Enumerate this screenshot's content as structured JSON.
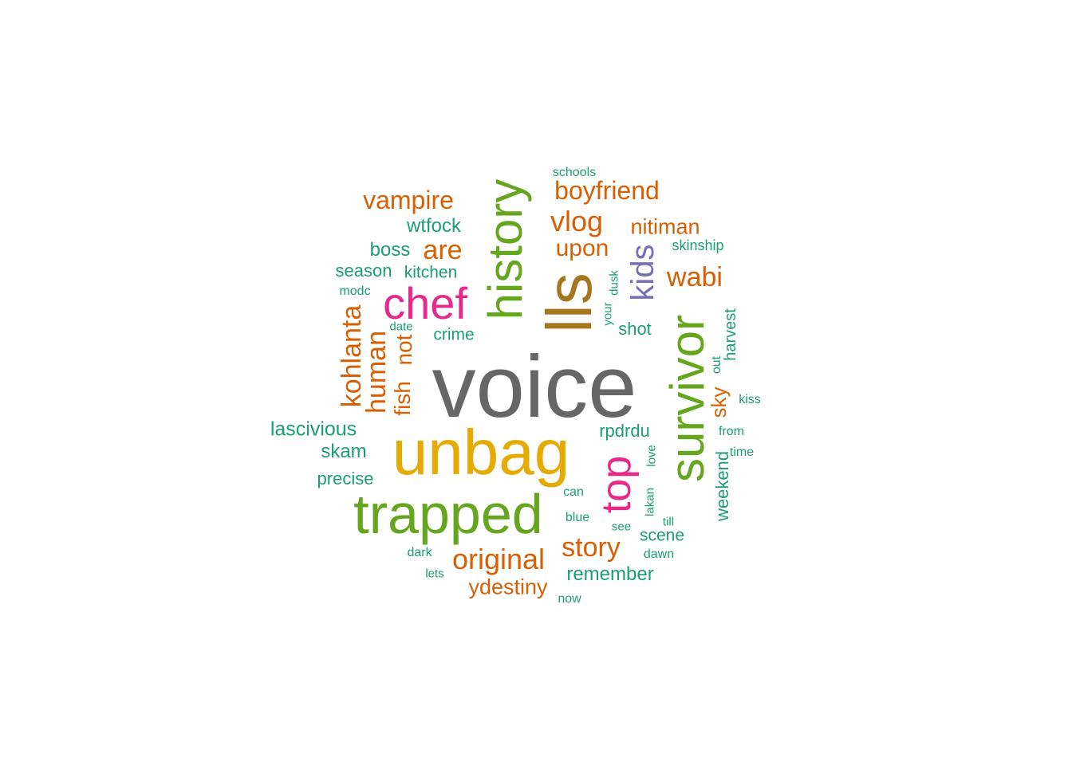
{
  "colors": {
    "teal": "#1b9e77",
    "orange": "#d95f02",
    "purple": "#7570b3",
    "magenta": "#e7298a",
    "green": "#66a61e",
    "gold": "#e6ab02",
    "brown": "#a6761d",
    "gray": "#666666"
  },
  "words": [
    {
      "text": "voice",
      "color": "gray",
      "rotated": false
    },
    {
      "text": "unbag",
      "color": "gold",
      "rotated": false
    },
    {
      "text": "trapped",
      "color": "green",
      "rotated": false
    },
    {
      "text": "lls",
      "color": "brown",
      "rotated": true
    },
    {
      "text": "survivor",
      "color": "green",
      "rotated": true
    },
    {
      "text": "history",
      "color": "green",
      "rotated": true
    },
    {
      "text": "chef",
      "color": "magenta",
      "rotated": false
    },
    {
      "text": "top",
      "color": "magenta",
      "rotated": true
    },
    {
      "text": "kids",
      "color": "purple",
      "rotated": true
    },
    {
      "text": "boyfriend",
      "color": "orange",
      "rotated": false
    },
    {
      "text": "vampire",
      "color": "orange",
      "rotated": false
    },
    {
      "text": "vlog",
      "color": "orange",
      "rotated": false
    },
    {
      "text": "nitiman",
      "color": "orange",
      "rotated": false
    },
    {
      "text": "are",
      "color": "orange",
      "rotated": false
    },
    {
      "text": "upon",
      "color": "orange",
      "rotated": false
    },
    {
      "text": "wabi",
      "color": "orange",
      "rotated": false
    },
    {
      "text": "kohlanta",
      "color": "orange",
      "rotated": true
    },
    {
      "text": "human",
      "color": "orange",
      "rotated": true
    },
    {
      "text": "not",
      "color": "orange",
      "rotated": true
    },
    {
      "text": "fish",
      "color": "orange",
      "rotated": true
    },
    {
      "text": "sky",
      "color": "orange",
      "rotated": true
    },
    {
      "text": "original",
      "color": "orange",
      "rotated": false
    },
    {
      "text": "story",
      "color": "orange",
      "rotated": false
    },
    {
      "text": "ydestiny",
      "color": "orange",
      "rotated": false
    },
    {
      "text": "wtfock",
      "color": "teal",
      "rotated": false
    },
    {
      "text": "boss",
      "color": "teal",
      "rotated": false
    },
    {
      "text": "season",
      "color": "teal",
      "rotated": false
    },
    {
      "text": "kitchen",
      "color": "teal",
      "rotated": false
    },
    {
      "text": "modc",
      "color": "teal",
      "rotated": false
    },
    {
      "text": "date",
      "color": "teal",
      "rotated": false
    },
    {
      "text": "crime",
      "color": "teal",
      "rotated": false
    },
    {
      "text": "schools",
      "color": "teal",
      "rotated": false
    },
    {
      "text": "skinship",
      "color": "teal",
      "rotated": false
    },
    {
      "text": "dusk",
      "color": "teal",
      "rotated": true
    },
    {
      "text": "your",
      "color": "teal",
      "rotated": true
    },
    {
      "text": "shot",
      "color": "teal",
      "rotated": false
    },
    {
      "text": "harvest",
      "color": "teal",
      "rotated": true
    },
    {
      "text": "out",
      "color": "teal",
      "rotated": true
    },
    {
      "text": "kiss",
      "color": "teal",
      "rotated": false
    },
    {
      "text": "from",
      "color": "teal",
      "rotated": false
    },
    {
      "text": "time",
      "color": "teal",
      "rotated": false
    },
    {
      "text": "weekend",
      "color": "teal",
      "rotated": true
    },
    {
      "text": "lascivious",
      "color": "teal",
      "rotated": false
    },
    {
      "text": "skam",
      "color": "teal",
      "rotated": false
    },
    {
      "text": "precise",
      "color": "teal",
      "rotated": false
    },
    {
      "text": "rpdrdu",
      "color": "teal",
      "rotated": false
    },
    {
      "text": "love",
      "color": "teal",
      "rotated": true
    },
    {
      "text": "can",
      "color": "teal",
      "rotated": false
    },
    {
      "text": "lakan",
      "color": "teal",
      "rotated": true
    },
    {
      "text": "blue",
      "color": "teal",
      "rotated": false
    },
    {
      "text": "see",
      "color": "teal",
      "rotated": false
    },
    {
      "text": "till",
      "color": "teal",
      "rotated": false
    },
    {
      "text": "scene",
      "color": "teal",
      "rotated": false
    },
    {
      "text": "dawn",
      "color": "teal",
      "rotated": false
    },
    {
      "text": "dark",
      "color": "teal",
      "rotated": false
    },
    {
      "text": "lets",
      "color": "teal",
      "rotated": false
    },
    {
      "text": "remember",
      "color": "teal",
      "rotated": false
    },
    {
      "text": "now",
      "color": "teal",
      "rotated": false
    }
  ]
}
